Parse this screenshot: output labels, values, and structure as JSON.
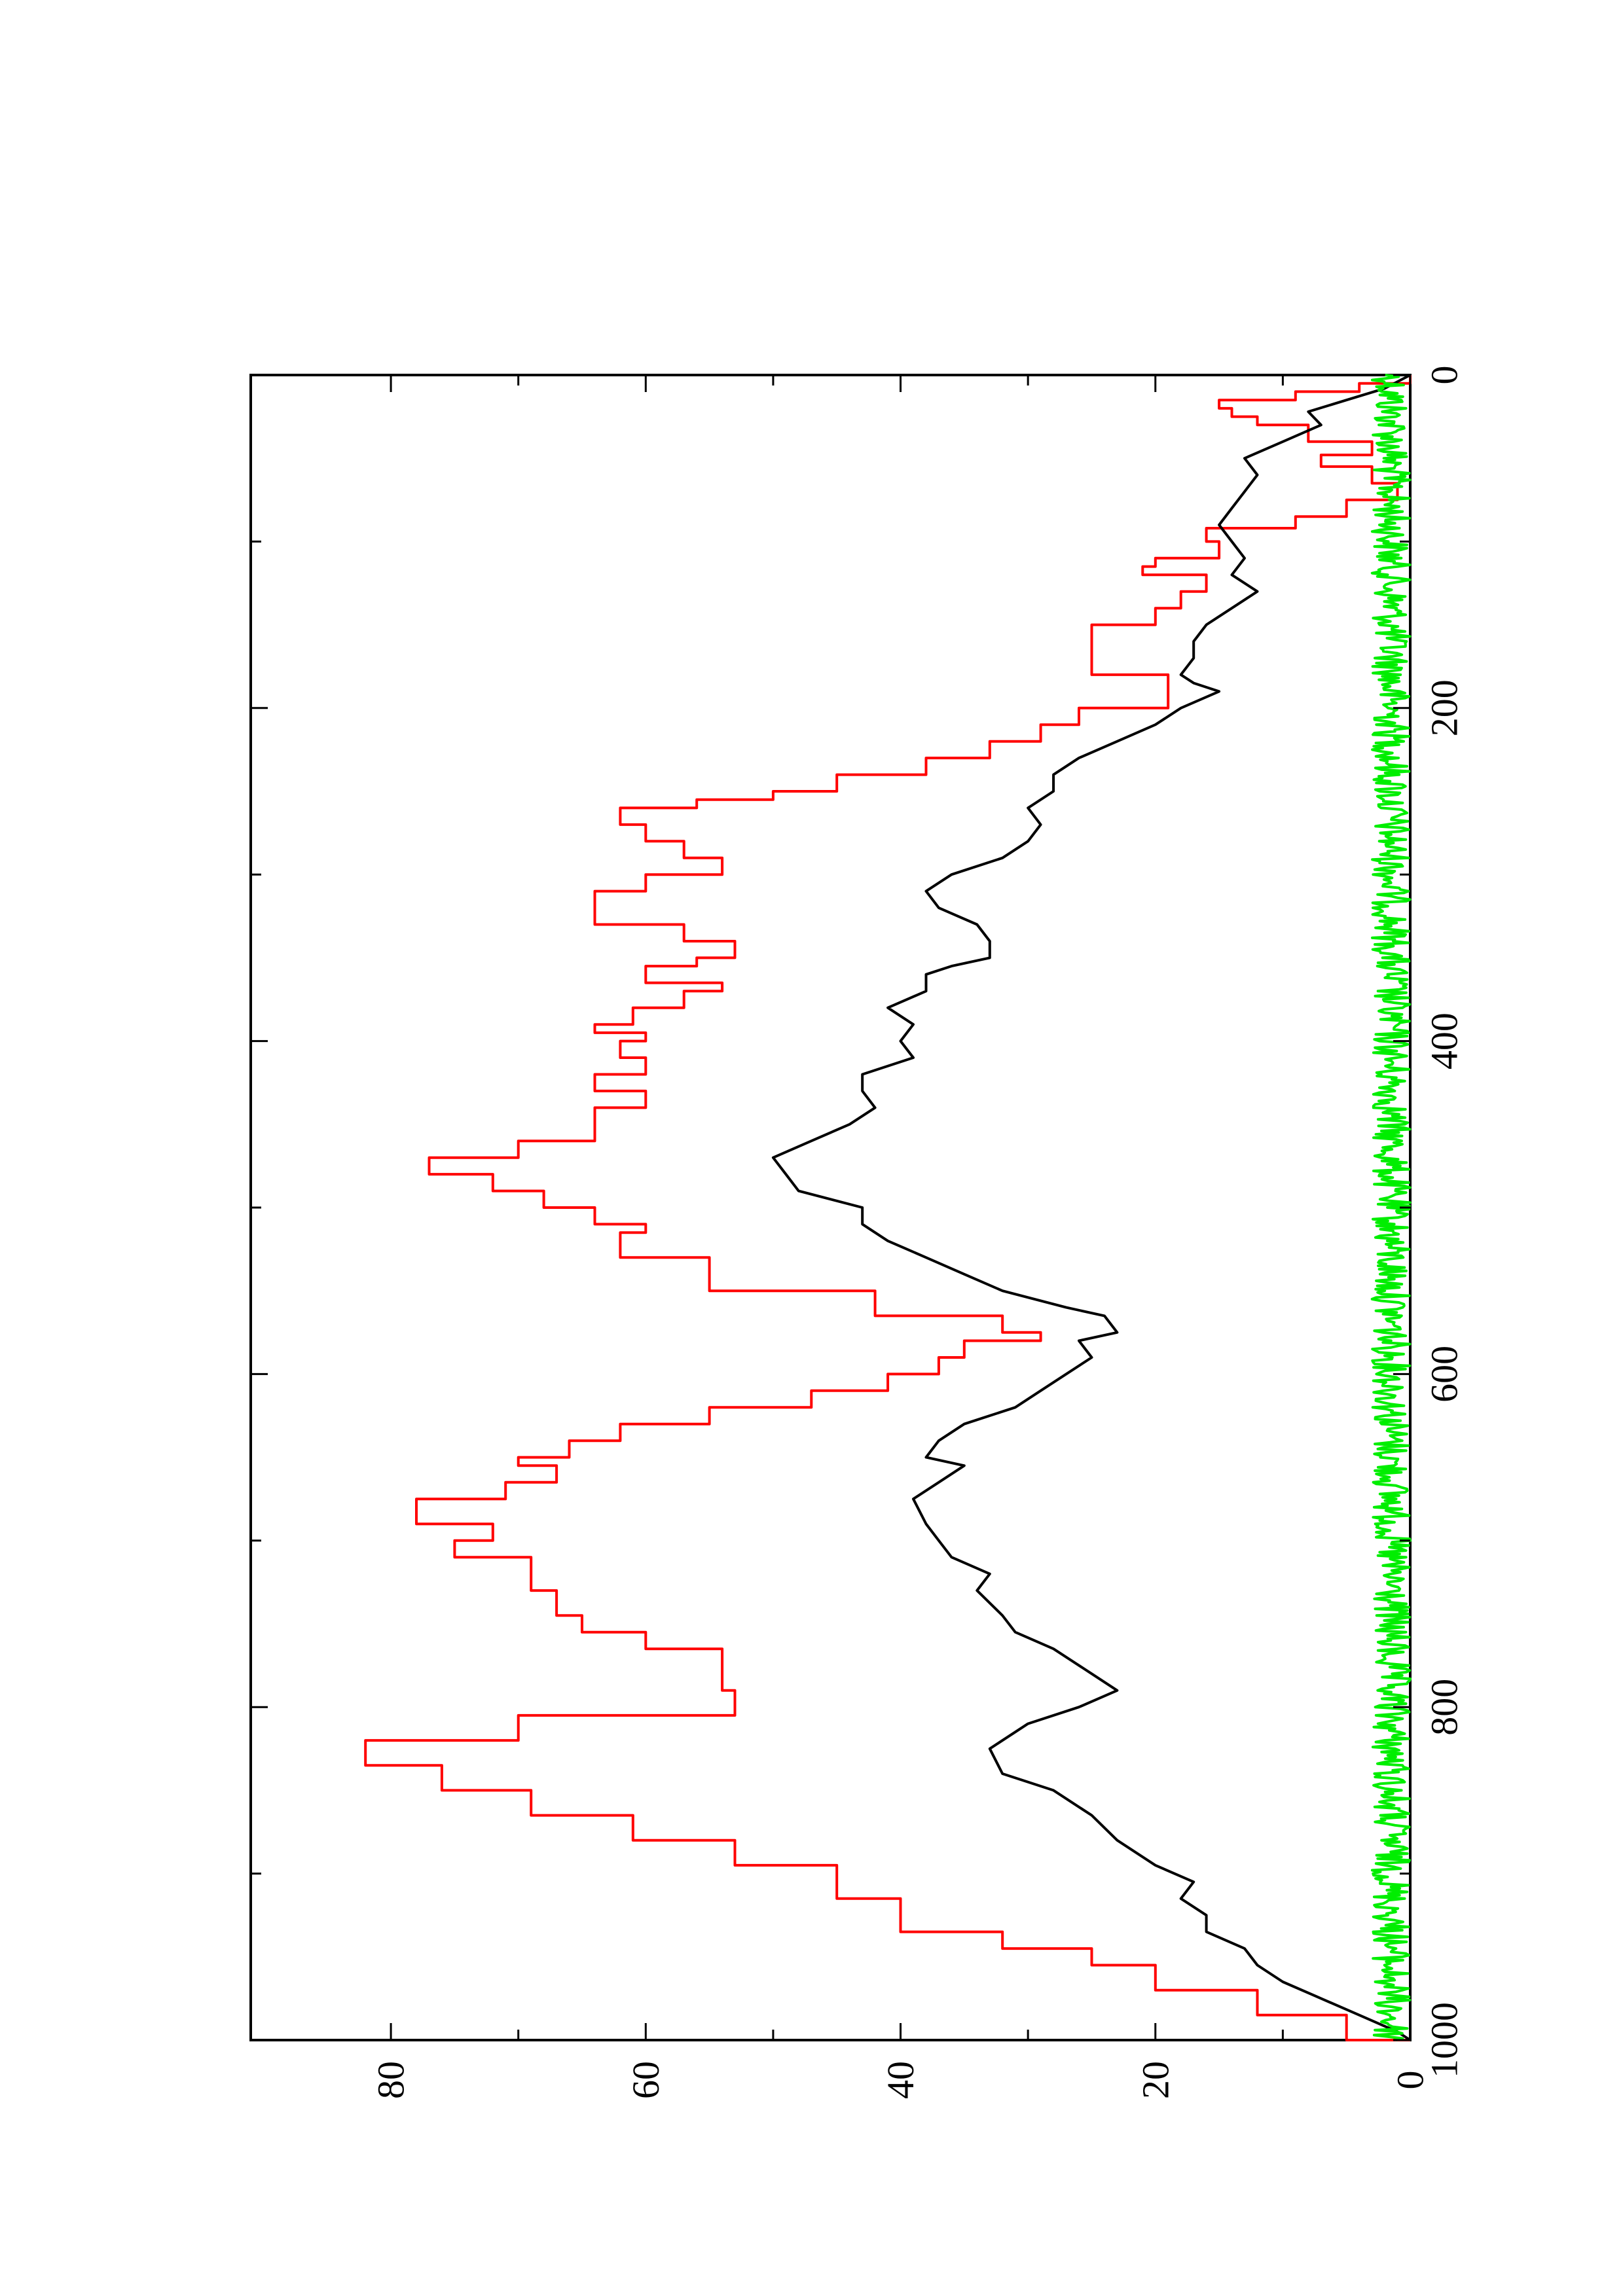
{
  "chart_data": {
    "type": "line",
    "orientation": "rotated-90-ccw",
    "title": "",
    "xlabel": "",
    "ylabel": "",
    "xlim": [
      0,
      1000
    ],
    "ylim": [
      0,
      91
    ],
    "grid": false,
    "legend": "none",
    "x_ticks": [
      0,
      200,
      400,
      600,
      800,
      1000
    ],
    "x_tick_labels": [
      "0",
      "200",
      "400",
      "600",
      "800",
      "1000"
    ],
    "x_minor_ticks": [
      100,
      300,
      500,
      700,
      900
    ],
    "y_ticks": [
      0,
      20,
      40,
      60,
      80
    ],
    "y_tick_labels": [
      "0",
      "20",
      "40",
      "60",
      "80"
    ],
    "y_minor_ticks": [
      10,
      30,
      50,
      70
    ],
    "series": [
      {
        "color": "#ff0000",
        "step": true,
        "x": [
          0,
          5,
          10,
          15,
          20,
          25,
          30,
          40,
          48,
          55,
          65,
          75,
          85,
          92,
          100,
          110,
          115,
          120,
          130,
          140,
          150,
          160,
          170,
          180,
          190,
          200,
          210,
          220,
          230,
          240,
          250,
          255,
          260,
          270,
          280,
          290,
          300,
          310,
          320,
          330,
          340,
          350,
          355,
          365,
          370,
          380,
          390,
          395,
          400,
          410,
          420,
          430,
          440,
          450,
          460,
          470,
          480,
          490,
          500,
          510,
          515,
          530,
          550,
          565,
          575,
          580,
          590,
          600,
          610,
          620,
          630,
          640,
          650,
          655,
          665,
          675,
          690,
          700,
          710,
          730,
          745,
          755,
          765,
          790,
          805,
          820,
          835,
          850,
          865,
          880,
          895,
          915,
          935,
          945,
          955,
          970,
          985,
          1000
        ],
        "y": [
          0,
          4,
          9,
          15,
          14,
          12,
          8,
          3,
          7,
          3,
          1,
          5,
          9,
          16,
          15,
          20,
          21,
          16,
          18,
          20,
          25,
          25,
          25,
          19,
          19,
          26,
          29,
          33,
          38,
          45,
          50,
          56,
          62,
          60,
          57,
          54,
          60,
          64,
          64,
          57,
          53,
          56,
          60,
          54,
          57,
          61,
          64,
          60,
          62,
          60,
          64,
          60,
          64,
          64,
          70,
          77,
          72,
          68,
          64,
          60,
          62,
          55,
          42,
          32,
          29,
          35,
          37,
          41,
          47,
          55,
          62,
          66,
          70,
          67,
          71,
          78,
          72,
          75,
          69,
          67,
          65,
          60,
          54,
          53,
          70,
          82,
          76,
          69,
          61,
          53,
          45,
          40,
          32,
          25,
          20,
          12,
          5,
          0
        ]
      },
      {
        "color": "#000000",
        "step": false,
        "x": [
          0,
          8,
          15,
          22,
          30,
          40,
          50,
          60,
          70,
          80,
          90,
          100,
          110,
          120,
          130,
          140,
          150,
          160,
          170,
          180,
          185,
          190,
          200,
          210,
          220,
          230,
          240,
          250,
          260,
          270,
          280,
          290,
          300,
          310,
          320,
          330,
          340,
          350,
          355,
          360,
          370,
          380,
          390,
          400,
          410,
          420,
          430,
          440,
          450,
          460,
          470,
          480,
          490,
          500,
          510,
          520,
          530,
          540,
          550,
          560,
          565,
          575,
          580,
          590,
          600,
          610,
          620,
          630,
          640,
          650,
          655,
          665,
          675,
          690,
          700,
          710,
          720,
          730,
          745,
          755,
          765,
          780,
          790,
          800,
          810,
          825,
          840,
          850,
          865,
          880,
          895,
          905,
          915,
          925,
          935,
          945,
          955,
          965,
          975,
          985,
          995,
          1000
        ],
        "y": [
          0,
          2,
          5,
          8,
          7,
          10,
          13,
          12,
          13,
          14,
          15,
          14,
          13,
          14,
          12,
          14,
          16,
          17,
          17,
          18,
          17,
          15,
          18,
          20,
          23,
          26,
          28,
          28,
          30,
          29,
          30,
          32,
          36,
          38,
          37,
          34,
          33,
          33,
          36,
          38,
          38,
          41,
          39,
          40,
          39,
          43,
          43,
          42,
          44,
          47,
          50,
          49,
          48,
          43,
          43,
          41,
          38,
          35,
          32,
          27,
          24,
          23,
          26,
          25,
          27,
          29,
          31,
          35,
          37,
          38,
          35,
          37,
          39,
          38,
          37,
          36,
          33,
          34,
          32,
          31,
          28,
          25,
          23,
          26,
          30,
          33,
          32,
          28,
          25,
          23,
          20,
          17,
          18,
          16,
          16,
          13,
          12,
          10,
          7,
          4,
          1,
          0
        ]
      },
      {
        "color": "#00ee00",
        "step": false,
        "noise": true,
        "x_range": [
          0,
          1000
        ],
        "y_range": [
          0,
          3
        ]
      }
    ]
  }
}
